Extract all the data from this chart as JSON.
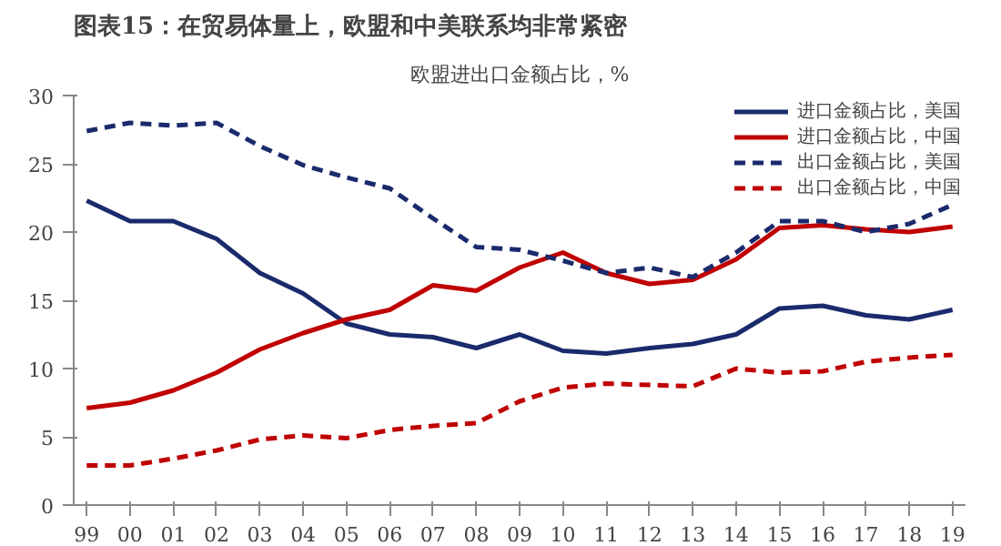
{
  "chart_data": {
    "type": "line",
    "title": "图表15：在贸易体量上，欧盟和中美联系均非常紧密",
    "subtitle": "欧盟进出口金额占比，%",
    "categories": [
      "99",
      "00",
      "01",
      "02",
      "03",
      "04",
      "05",
      "06",
      "07",
      "08",
      "09",
      "10",
      "11",
      "12",
      "13",
      "14",
      "15",
      "16",
      "17",
      "18",
      "19"
    ],
    "series": [
      {
        "name": "进口金额占比，美国",
        "color": "#1a2a6c",
        "line_style": "solid",
        "values": [
          22.3,
          20.8,
          20.8,
          19.5,
          17,
          15.5,
          13.3,
          12.5,
          12.3,
          11.5,
          12.5,
          11.3,
          11.1,
          11.5,
          11.8,
          12.5,
          14.4,
          14.6,
          13.9,
          13.6,
          14.3
        ]
      },
      {
        "name": "进口金额占比，中国",
        "color": "#c00000",
        "line_style": "solid",
        "values": [
          7.1,
          7.5,
          8.4,
          9.7,
          11.4,
          12.6,
          13.6,
          14.3,
          16.1,
          15.7,
          17.4,
          18.5,
          17,
          16.2,
          16.5,
          18,
          20.3,
          20.5,
          20.2,
          20,
          20.4
        ]
      },
      {
        "name": "出口金额占比，美国",
        "color": "#1a2a6c",
        "line_style": "dashed",
        "values": [
          27.4,
          28,
          27.8,
          28,
          26.3,
          24.9,
          24,
          23.2,
          21,
          18.9,
          18.7,
          17.9,
          17,
          17.4,
          16.7,
          18.5,
          20.8,
          20.8,
          20,
          20.6,
          22
        ]
      },
      {
        "name": "出口金额占比，中国",
        "color": "#c00000",
        "line_style": "dashed",
        "values": [
          2.9,
          2.9,
          3.4,
          4,
          4.8,
          5.1,
          4.9,
          5.5,
          5.8,
          6,
          7.6,
          8.6,
          8.9,
          8.8,
          8.7,
          10,
          9.7,
          9.8,
          10.5,
          10.8,
          11
        ]
      }
    ],
    "ylim": [
      0,
      30
    ],
    "yticks": [
      0,
      5,
      10,
      15,
      20,
      25,
      30
    ],
    "grid": false,
    "legend": "top right",
    "marker": "none"
  }
}
